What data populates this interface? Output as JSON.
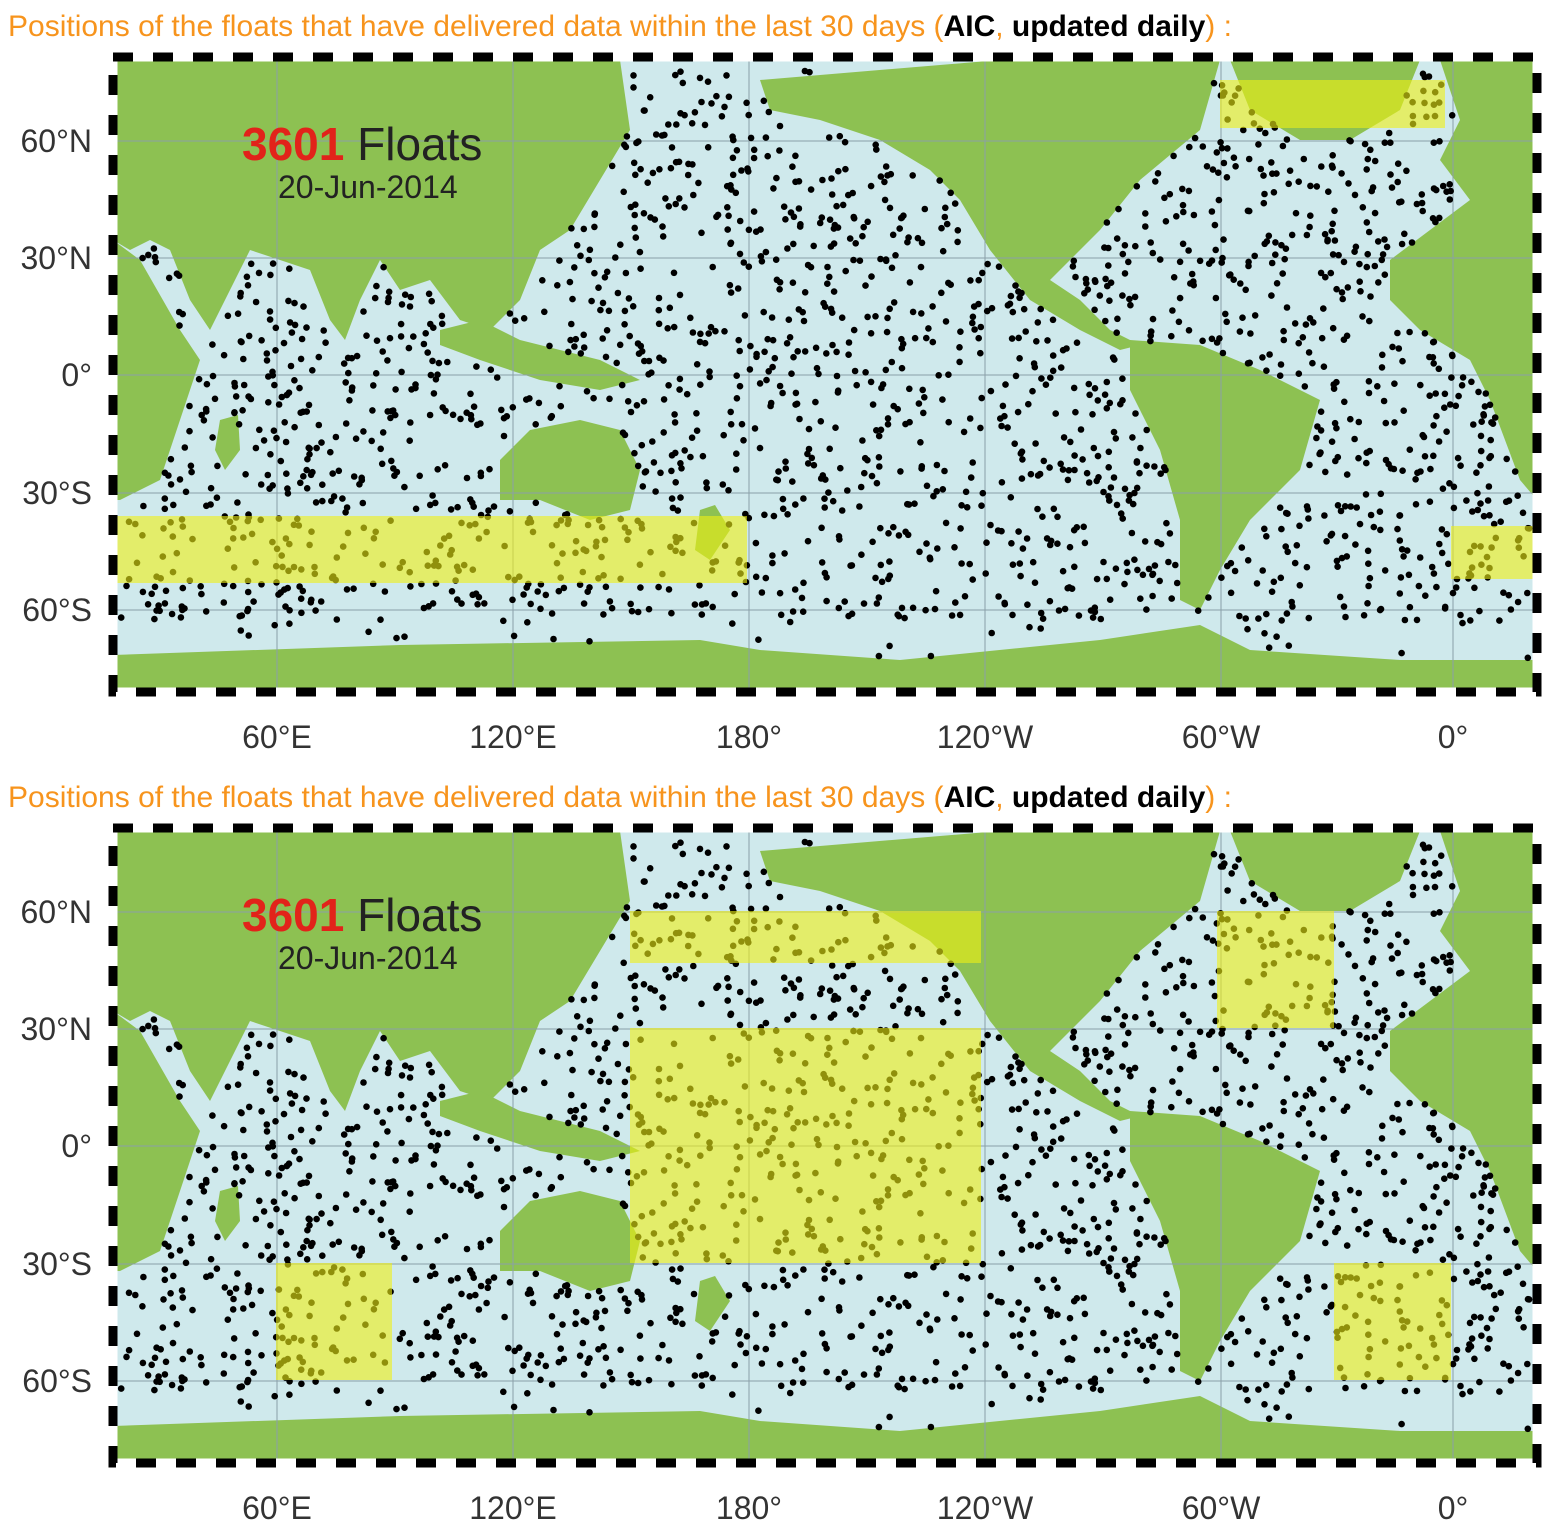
{
  "panels": [
    {
      "heading": {
        "prefix": "Positions of the floats that have delivered data within the last 30 days (",
        "source": "AIC",
        "separator": ", ",
        "frequency": "updated daily",
        "suffix": ") :"
      },
      "map": {
        "count": "3601",
        "count_label": "Floats",
        "date": "20-Jun-2014",
        "lat_labels": [
          "60°N",
          "30°N",
          "0°",
          "30°S",
          "60°S"
        ],
        "lon_labels": [
          "60°E",
          "120°E",
          "180°",
          "120°W",
          "60°W",
          "0°"
        ]
      }
    },
    {
      "heading": {
        "prefix": "Positions of the floats that have delivered data within the last 30 days (",
        "source": "AIC",
        "separator": ", ",
        "frequency": "updated daily",
        "suffix": ") :"
      },
      "map": {
        "count": "3601",
        "count_label": "Floats",
        "date": "20-Jun-2014",
        "lat_labels": [
          "60°N",
          "30°N",
          "0°",
          "30°S",
          "60°S"
        ],
        "lon_labels": [
          "60°E",
          "120°E",
          "180°",
          "120°W",
          "60°W",
          "0°"
        ]
      }
    }
  ]
}
